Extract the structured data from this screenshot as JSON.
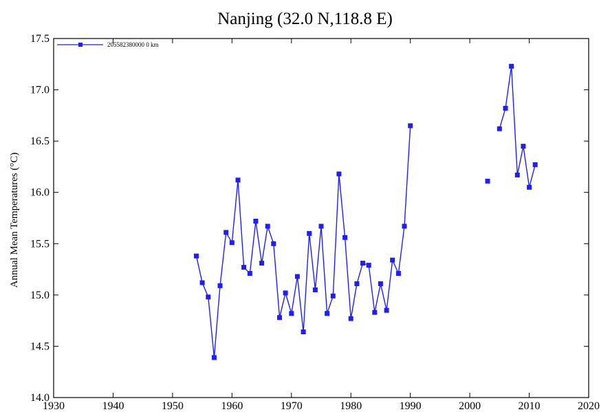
{
  "chart_data": {
    "type": "line",
    "title": "Nanjing (32.0 N,118.8 E)",
    "xlabel": "",
    "ylabel": "Annual Mean Temperatures (°C)",
    "xlim": [
      1930,
      2020
    ],
    "ylim": [
      14.0,
      17.5
    ],
    "xticks": [
      1930,
      1940,
      1950,
      1960,
      1970,
      1980,
      1990,
      2000,
      2010,
      2020
    ],
    "yticks": [
      "14.0",
      "14.5",
      "15.0",
      "15.5",
      "16.0",
      "16.5",
      "17.0",
      "17.5"
    ],
    "grid": false,
    "legend": "top-left",
    "series_color": "#1f1ff5",
    "series": [
      {
        "name": "205582380000  0 km",
        "x": [
          1954,
          1955,
          1956,
          1957,
          1958,
          1959,
          1960,
          1961,
          1962,
          1963,
          1964,
          1965,
          1966,
          1967,
          1968,
          1969,
          1970,
          1971,
          1972,
          1973,
          1974,
          1975,
          1976,
          1977,
          1978,
          1979,
          1980,
          1981,
          1982,
          1983,
          1984,
          1985,
          1986,
          1987,
          1988,
          1989,
          1990,
          2003,
          2005,
          2006,
          2007,
          2008,
          2009,
          2010,
          2011
        ],
        "values": [
          15.38,
          15.12,
          14.98,
          14.39,
          15.09,
          15.61,
          15.51,
          16.12,
          15.27,
          15.21,
          15.72,
          15.31,
          15.67,
          15.5,
          14.78,
          15.02,
          14.82,
          15.18,
          14.64,
          15.6,
          15.05,
          15.67,
          14.82,
          14.99,
          16.18,
          15.56,
          14.77,
          15.11,
          15.31,
          15.29,
          14.83,
          15.11,
          14.85,
          15.34,
          15.21,
          15.67,
          16.65,
          16.11,
          16.62,
          16.82,
          17.23,
          16.17,
          16.45,
          16.05,
          16.27
        ]
      }
    ]
  }
}
